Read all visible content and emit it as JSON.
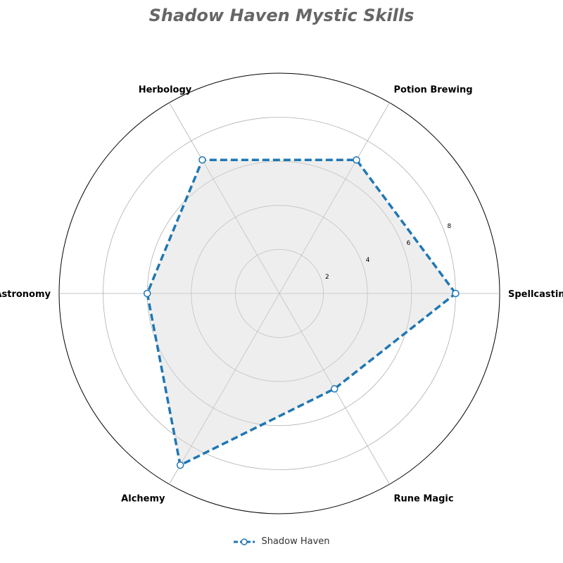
{
  "chart_data": {
    "type": "radar",
    "title": "Shadow Haven Mystic Skills",
    "axes": [
      "Spellcasting",
      "Potion Brewing",
      "Herbology",
      "Astronomy",
      "Alchemy",
      "Rune Magic"
    ],
    "series": [
      {
        "name": "Shadow Haven",
        "values": [
          8,
          7,
          7,
          6,
          9,
          5
        ]
      }
    ],
    "rlim": [
      0,
      10
    ],
    "rticks": [
      2,
      4,
      6,
      8
    ],
    "grid": true,
    "legend": "bottom-center",
    "colors": {
      "line": "#1f77b4",
      "fill": "#d9d9d9",
      "grid": "#b0b0b0",
      "title": "#666666"
    }
  }
}
